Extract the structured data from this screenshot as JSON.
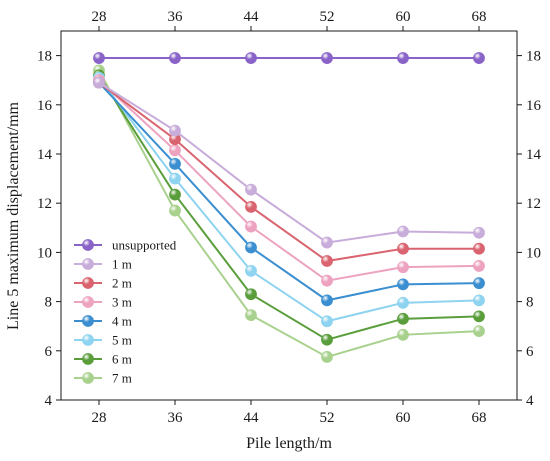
{
  "chart_data": {
    "type": "line",
    "xlabel": "Pile length/m",
    "ylabel": "Line 5 maximum displacement/mm",
    "x": [
      28,
      36,
      44,
      52,
      60,
      68
    ],
    "xlim": [
      24,
      72
    ],
    "ylim": [
      4,
      19
    ],
    "yticks": [
      4,
      6,
      8,
      10,
      12,
      14,
      16,
      18
    ],
    "grid": false,
    "legend_position": "lower-left",
    "series": [
      {
        "name": "unsupported",
        "color": "#8a63c9",
        "values": [
          17.9,
          17.9,
          17.9,
          17.9,
          17.9,
          17.9
        ]
      },
      {
        "name": "1 m",
        "color": "#c8acd9",
        "values": [
          16.9,
          14.95,
          12.55,
          10.4,
          10.85,
          10.8
        ]
      },
      {
        "name": "2 m",
        "color": "#d9646f",
        "values": [
          16.9,
          14.6,
          11.85,
          9.65,
          10.15,
          10.15
        ]
      },
      {
        "name": "3 m",
        "color": "#eda2bf",
        "values": [
          17.0,
          14.15,
          11.05,
          8.85,
          9.4,
          9.45
        ]
      },
      {
        "name": "4 m",
        "color": "#3b8fd0",
        "values": [
          16.9,
          13.6,
          10.2,
          8.05,
          8.7,
          8.75
        ]
      },
      {
        "name": "5 m",
        "color": "#8ed3ef",
        "values": [
          17.1,
          13.0,
          9.25,
          7.2,
          7.95,
          8.05
        ]
      },
      {
        "name": "6 m",
        "color": "#5a9e3c",
        "values": [
          17.2,
          12.35,
          8.3,
          6.45,
          7.3,
          7.4
        ]
      },
      {
        "name": "7 m",
        "color": "#a9d18e",
        "values": [
          17.4,
          11.7,
          7.45,
          5.75,
          6.65,
          6.8
        ]
      }
    ]
  }
}
